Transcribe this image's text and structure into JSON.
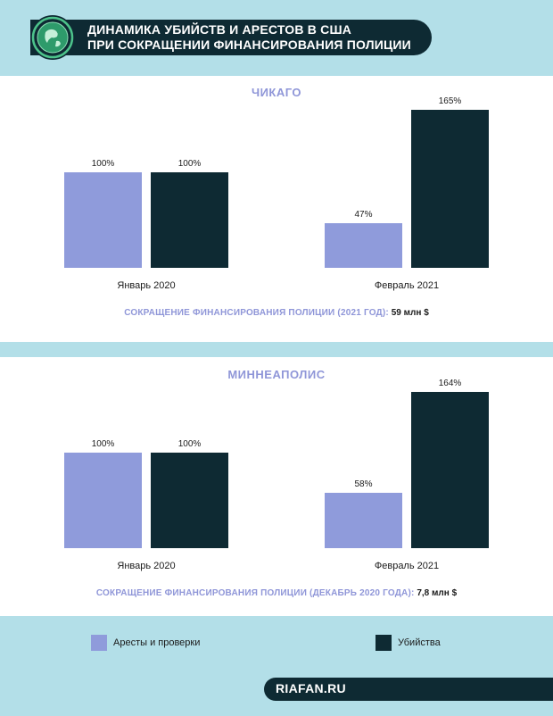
{
  "header": {
    "title_line1": "ДИНАМИКА УБИЙСТВ И АРЕСТОВ В США",
    "title_line2": "ПРИ СОКРАЩЕНИИ ФИНАНСИРОВАНИЯ ПОЛИЦИИ",
    "logo_icon": "globe-emblem-icon"
  },
  "chart_data": [
    {
      "type": "bar",
      "title": "ЧИКАГО",
      "categories": [
        "Январь 2020",
        "Февраль 2021"
      ],
      "series": [
        {
          "name": "Аресты и проверки",
          "values": [
            100,
            47
          ],
          "labels": [
            "100%",
            "47%"
          ],
          "color": "#8f9bdb"
        },
        {
          "name": "Убийства",
          "values": [
            100,
            165
          ],
          "labels": [
            "100%",
            "165%"
          ],
          "color": "#0e2a33"
        }
      ],
      "ylim": [
        0,
        165
      ],
      "funding_cut_label": "СОКРАЩЕНИЕ ФИНАНСИРОВАНИЯ ПОЛИЦИИ (2021 ГОД):",
      "funding_cut_value": "59 млн $"
    },
    {
      "type": "bar",
      "title": "МИННЕАПОЛИС",
      "categories": [
        "Январь 2020",
        "Февраль 2021"
      ],
      "series": [
        {
          "name": "Аресты и проверки",
          "values": [
            100,
            58
          ],
          "labels": [
            "100%",
            "58%"
          ],
          "color": "#8f9bdb"
        },
        {
          "name": "Убийства",
          "values": [
            100,
            164
          ],
          "labels": [
            "100%",
            "164%"
          ],
          "color": "#0e2a33"
        }
      ],
      "ylim": [
        0,
        165
      ],
      "funding_cut_label": "СОКРАЩЕНИЕ ФИНАНСИРОВАНИЯ ПОЛИЦИИ (ДЕКАБРЬ 2020 ГОДА):",
      "funding_cut_value": "7,8 млн $"
    }
  ],
  "legend": {
    "arrests": "Аресты и проверки",
    "murders": "Убийства"
  },
  "footer": {
    "source": "RIAFAN.RU"
  }
}
